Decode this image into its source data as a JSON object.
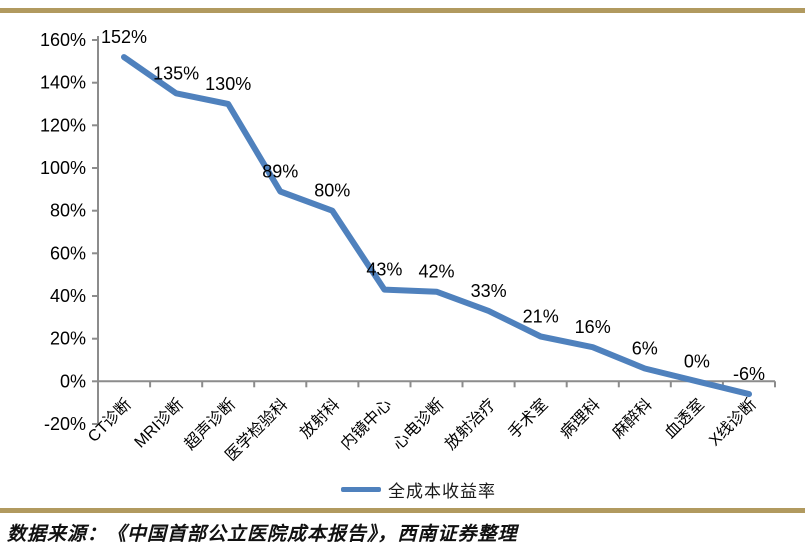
{
  "chart_data": {
    "type": "line",
    "title": "",
    "legend": "全成本收益率",
    "legend_position": "bottom",
    "categories": [
      "CT诊断",
      "MRI诊断",
      "超声诊断",
      "医学检验科",
      "放射科",
      "内镜中心",
      "心电诊断",
      "放射治疗",
      "手术室",
      "病理科",
      "麻醉科",
      "血透室",
      "X线诊断"
    ],
    "values": [
      152,
      135,
      130,
      89,
      80,
      43,
      42,
      33,
      21,
      16,
      6,
      0,
      -6
    ],
    "data_labels": [
      "152%",
      "135%",
      "130%",
      "89%",
      "80%",
      "43%",
      "42%",
      "33%",
      "21%",
      "16%",
      "6%",
      "0%",
      "-6%"
    ],
    "xlabel": "",
    "ylabel": "",
    "y_axis": {
      "min": -20,
      "max": 160,
      "step": 20,
      "tick_labels": [
        "160%",
        "140%",
        "120%",
        "100%",
        "80%",
        "60%",
        "40%",
        "20%",
        "0%",
        "-20%"
      ]
    },
    "grid": false,
    "line_color": "#4F81BD",
    "axis_color": "#8C8C8C",
    "label_color": "#000000"
  },
  "page": {
    "divider_color": "#B19A5F",
    "source_note": "数据来源：《中国首部公立医院成本报告》，西南证券整理"
  }
}
